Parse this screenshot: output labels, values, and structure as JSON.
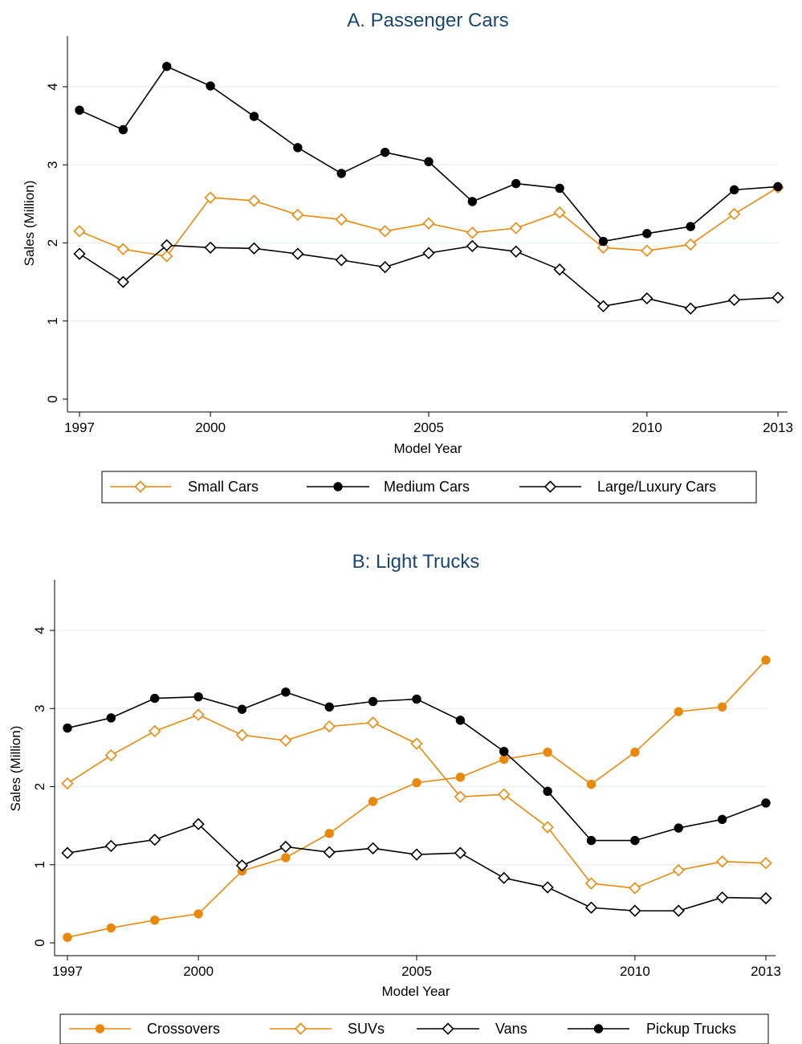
{
  "chart_data": [
    {
      "type": "line",
      "title": "A. Passenger Cars",
      "xlabel": "Model Year",
      "ylabel": "Sales (Million)",
      "xlim": [
        1997,
        2013
      ],
      "ylim": [
        0,
        4.5
      ],
      "xticks": [
        1997,
        2000,
        2005,
        2010,
        2013
      ],
      "yticks": [
        0,
        1,
        2,
        3,
        4
      ],
      "grid": true,
      "legend_position": "bottom",
      "x": [
        1997,
        1998,
        1999,
        2000,
        2001,
        2002,
        2003,
        2004,
        2005,
        2006,
        2007,
        2008,
        2009,
        2010,
        2011,
        2012,
        2013
      ],
      "series": [
        {
          "name": "Small Cars",
          "color": "#e8890c",
          "marker": "diamond-open",
          "values": [
            2.15,
            1.92,
            1.83,
            2.58,
            2.54,
            2.36,
            2.3,
            2.15,
            2.25,
            2.13,
            2.19,
            2.39,
            1.94,
            1.9,
            1.98,
            2.37,
            2.71
          ]
        },
        {
          "name": "Medium Cars",
          "color": "#000000",
          "marker": "circle-filled",
          "values": [
            3.7,
            3.45,
            4.26,
            4.01,
            3.62,
            3.22,
            2.89,
            3.16,
            3.04,
            2.53,
            2.76,
            2.7,
            2.02,
            2.12,
            2.21,
            2.68,
            2.72
          ]
        },
        {
          "name": "Large/Luxury Cars",
          "color": "#000000",
          "marker": "diamond-open",
          "values": [
            1.86,
            1.5,
            1.97,
            1.94,
            1.93,
            1.86,
            1.78,
            1.69,
            1.87,
            1.96,
            1.89,
            1.66,
            1.19,
            1.29,
            1.16,
            1.27,
            1.3
          ]
        }
      ]
    },
    {
      "type": "line",
      "title": "B: Light Trucks",
      "xlabel": "Model Year",
      "ylabel": "Sales (Million)",
      "xlim": [
        1997,
        2013
      ],
      "ylim": [
        0,
        4.5
      ],
      "xticks": [
        1997,
        2000,
        2005,
        2010,
        2013
      ],
      "yticks": [
        0,
        1,
        2,
        3,
        4
      ],
      "grid": true,
      "legend_position": "bottom",
      "x": [
        1997,
        1998,
        1999,
        2000,
        2001,
        2002,
        2003,
        2004,
        2005,
        2006,
        2007,
        2008,
        2009,
        2010,
        2011,
        2012,
        2013
      ],
      "series": [
        {
          "name": "Crossovers",
          "color": "#e8890c",
          "marker": "circle-filled",
          "values": [
            0.07,
            0.19,
            0.29,
            0.37,
            0.92,
            1.09,
            1.4,
            1.81,
            2.05,
            2.12,
            2.35,
            2.44,
            2.03,
            2.44,
            2.96,
            3.02,
            3.62
          ]
        },
        {
          "name": "SUVs",
          "color": "#e8890c",
          "marker": "diamond-open",
          "values": [
            2.04,
            2.4,
            2.71,
            2.92,
            2.66,
            2.59,
            2.77,
            2.82,
            2.55,
            1.87,
            1.9,
            1.48,
            0.76,
            0.7,
            0.93,
            1.04,
            1.02
          ]
        },
        {
          "name": "Vans",
          "color": "#000000",
          "marker": "diamond-open",
          "values": [
            1.15,
            1.24,
            1.32,
            1.52,
            0.99,
            1.23,
            1.16,
            1.21,
            1.13,
            1.15,
            0.83,
            0.71,
            0.45,
            0.41,
            0.41,
            0.58,
            0.57
          ]
        },
        {
          "name": "Pickup Trucks",
          "color": "#000000",
          "marker": "circle-filled",
          "values": [
            2.75,
            2.88,
            3.13,
            3.15,
            2.99,
            3.21,
            3.02,
            3.09,
            3.12,
            2.85,
            2.45,
            1.94,
            1.31,
            1.31,
            1.47,
            1.58,
            1.79
          ]
        }
      ]
    }
  ]
}
